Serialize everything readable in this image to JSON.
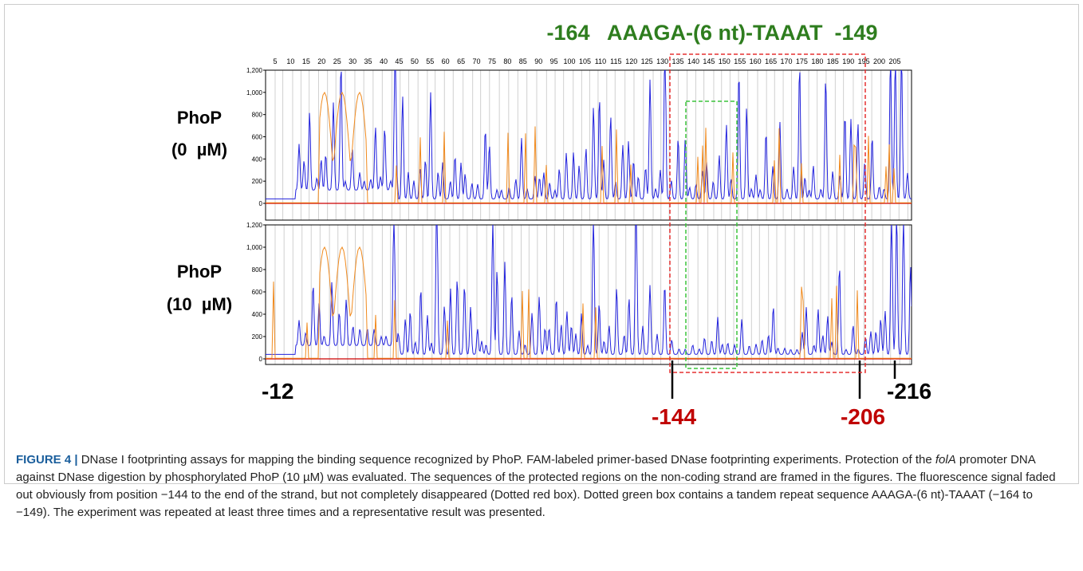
{
  "figure": {
    "title": "-164   AAAGA-(6 nt)-TAAAT  -149",
    "panels": [
      {
        "label_line1": "PhoP",
        "label_line2": "(0  µM)"
      },
      {
        "label_line1": "PhoP",
        "label_line2": "(10  µM)"
      }
    ],
    "scale_ticks": [
      5,
      10,
      15,
      20,
      25,
      30,
      35,
      40,
      45,
      50,
      55,
      60,
      65,
      70,
      75,
      80,
      85,
      90,
      95,
      100,
      105,
      110,
      115,
      120,
      125,
      130,
      135,
      140,
      145,
      150,
      155,
      160,
      165,
      170,
      175,
      180,
      185,
      190,
      195,
      200,
      205
    ],
    "y_ticks": [
      0,
      200,
      400,
      600,
      800,
      {
        "value": 1000,
        "label": "1,000"
      },
      {
        "value": 1200,
        "label": "1,200"
      }
    ],
    "ylim": [
      0,
      1200
    ],
    "markers": {
      "left": "-12",
      "right": "-216",
      "red1": "-144",
      "red2": "-206"
    }
  },
  "caption": {
    "label": "FIGURE 4 |",
    "segments": [
      " DNase I footprinting assays for mapping the binding sequence recognized by PhoP. FAM-labeled primer-based DNase footprinting experiments. Protection of the ",
      "folA",
      " promoter DNA against DNase digestion by phosphorylated PhoP (10 µM) was evaluated. The sequences of the protected regions on the non-coding strand are framed in the figures. The fluorescence signal faded out obviously from position −144 to the end of the strand, but not completely disappeared (Dotted red box). Dotted green box contains a tandem repeat sequence AAAGA-(6 nt)-TAAAT (−164 to −149). The experiment was repeated at least three times and a representative result was presented."
    ]
  }
}
